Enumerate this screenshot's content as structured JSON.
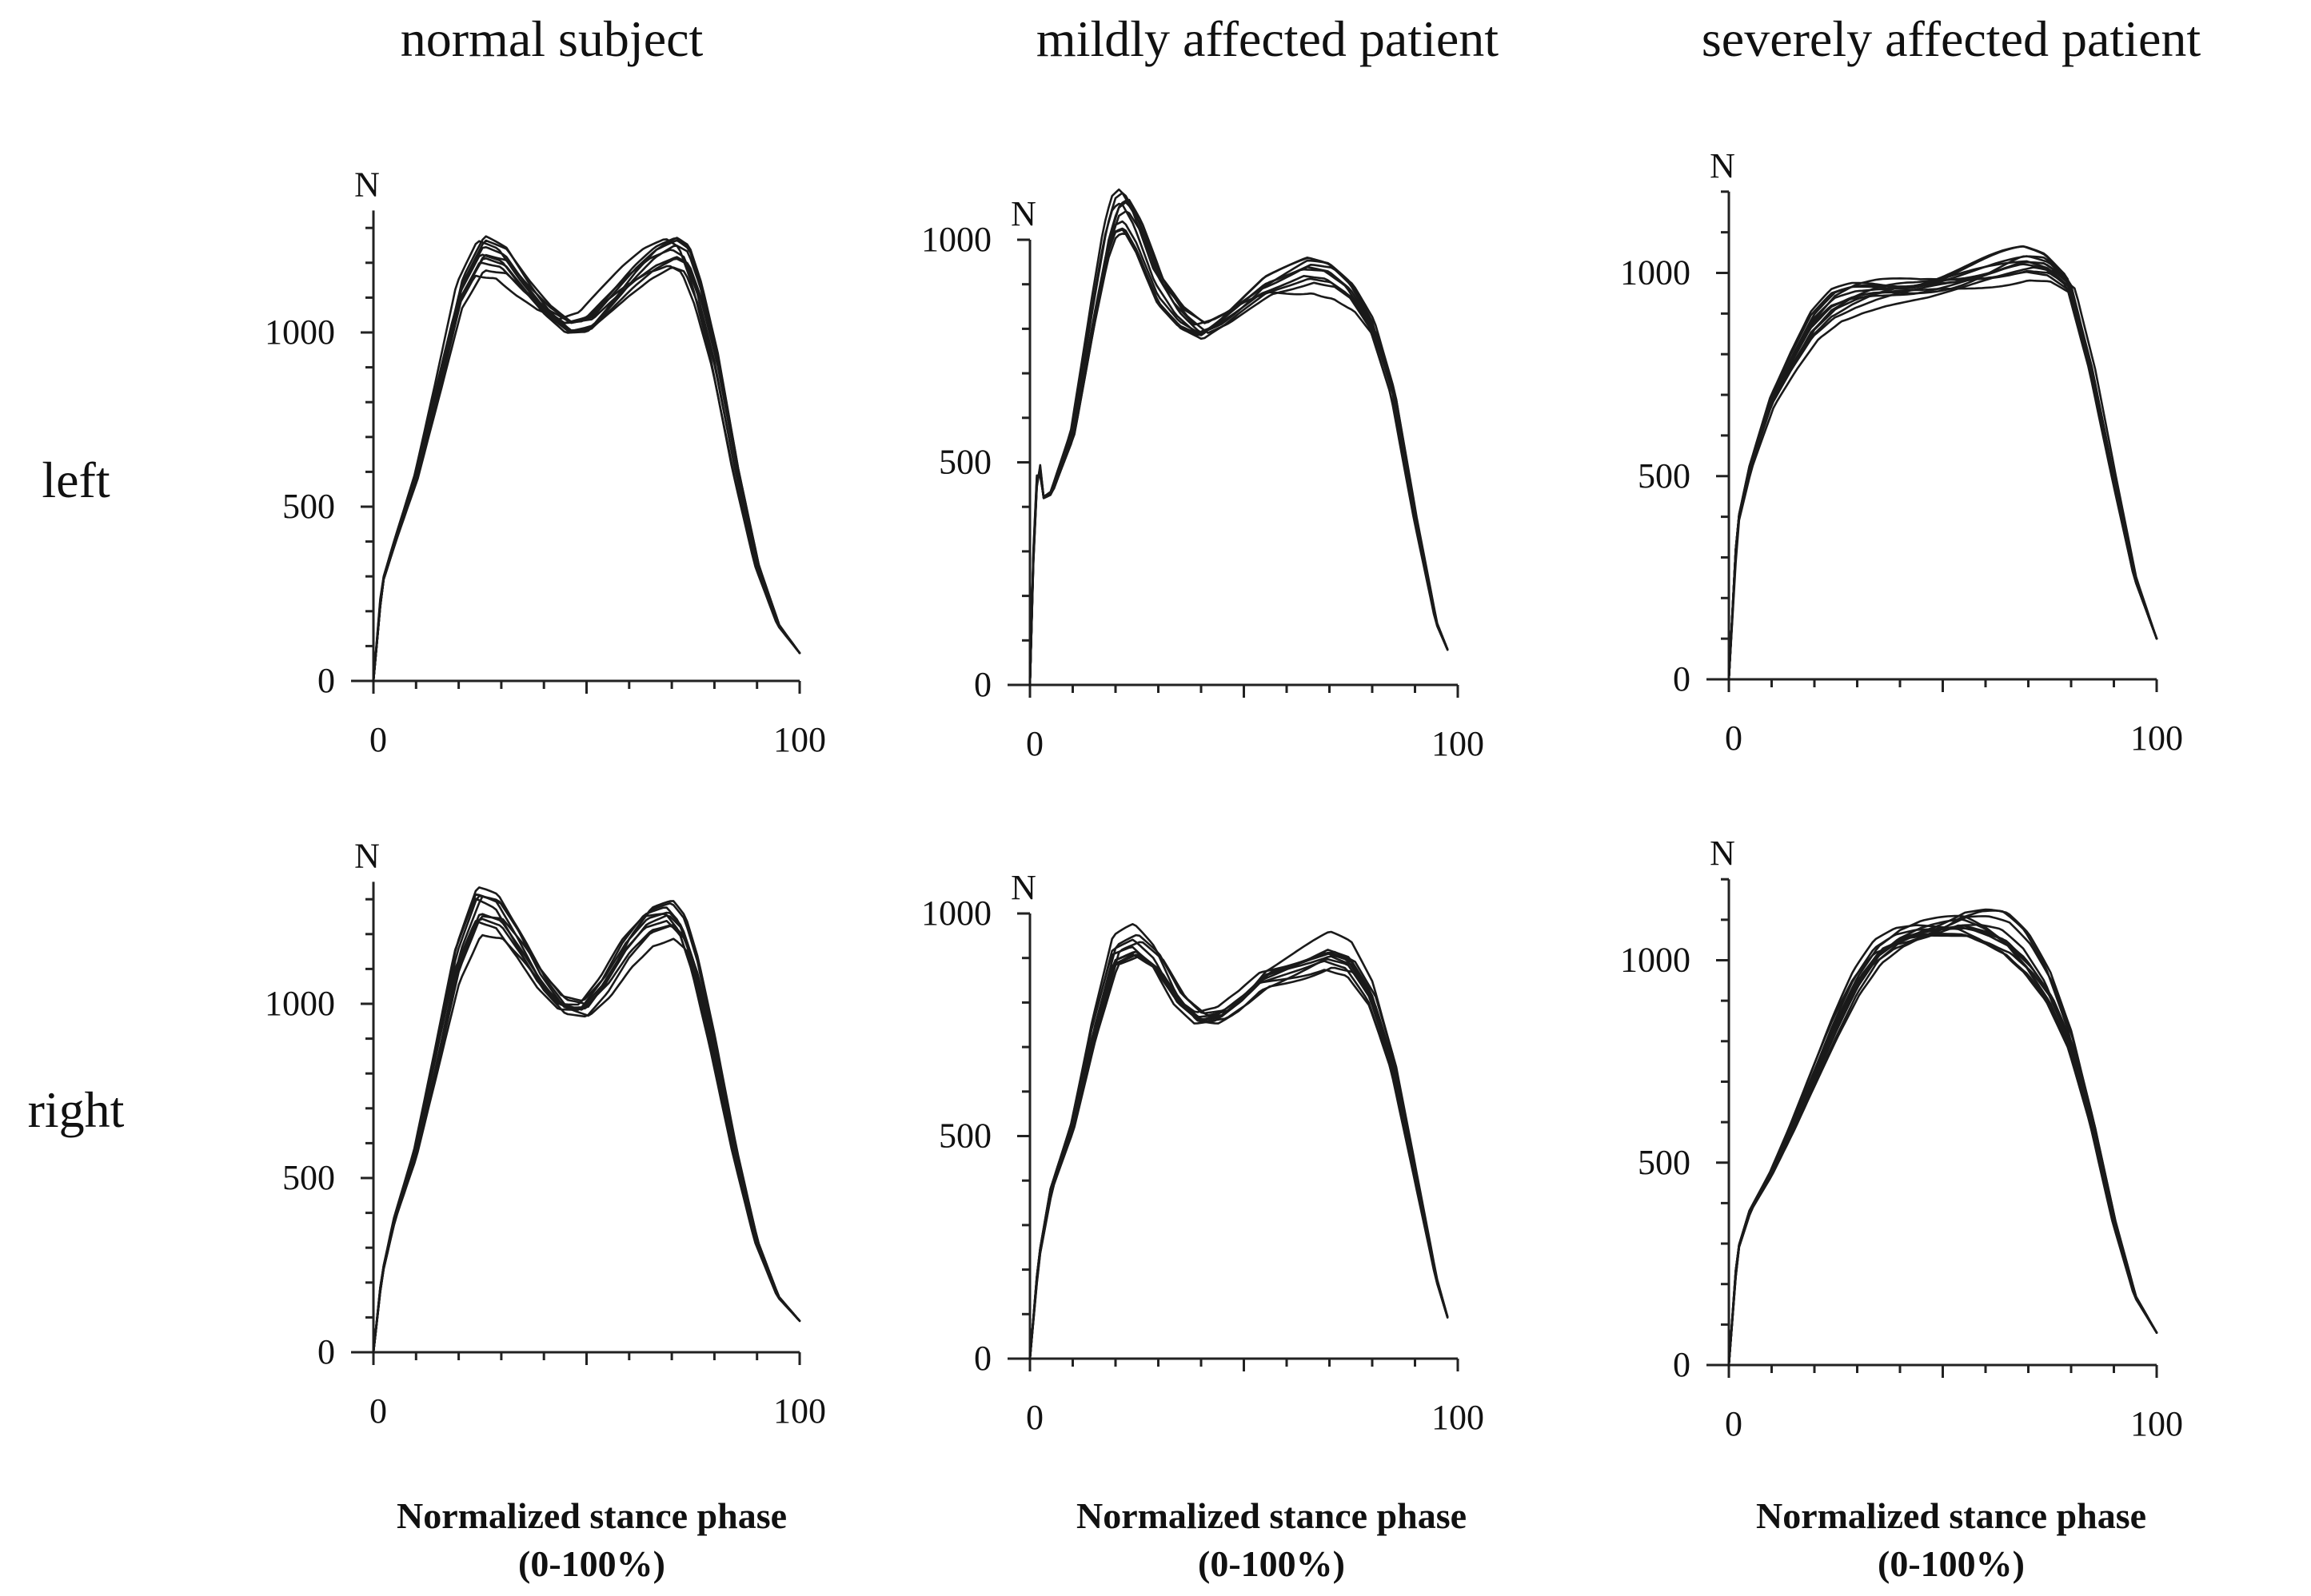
{
  "figure": {
    "columns": [
      "normal subject",
      "mildly affected patient",
      "severely affected patient"
    ],
    "rows": [
      "left",
      "right"
    ],
    "x_axis_title_line1": "Normalized stance phase",
    "x_axis_title_line2": "(0-100%)"
  },
  "chart_data": [
    {
      "type": "line",
      "id": "normal-left",
      "subject": "normal subject",
      "side": "left",
      "ylabel": "N",
      "xlim": [
        0,
        100
      ],
      "ylim": [
        0,
        1350
      ],
      "yticks": [
        0,
        500,
        1000
      ],
      "xtick_labels": [
        "0",
        "100"
      ],
      "trial_count": 10,
      "template_x": [
        0,
        2,
        5,
        10,
        15,
        20,
        25,
        30,
        35,
        40,
        45,
        50,
        55,
        60,
        65,
        70,
        73,
        76,
        80,
        85,
        90,
        95,
        100
      ],
      "template_y": [
        0,
        280,
        400,
        590,
        850,
        1120,
        1240,
        1220,
        1140,
        1070,
        1020,
        1030,
        1090,
        1150,
        1200,
        1230,
        1210,
        1110,
        920,
        600,
        330,
        160,
        80
      ],
      "peak1_range": [
        1160,
        1290
      ],
      "valley_range": [
        920,
        1060
      ],
      "peak2_range": [
        1150,
        1250
      ]
    },
    {
      "type": "line",
      "id": "mild-left",
      "subject": "mildly affected patient",
      "side": "left",
      "ylabel": "N",
      "xlim": [
        0,
        100
      ],
      "ylim": [
        0,
        1000
      ],
      "yticks": [
        0,
        500,
        1000
      ],
      "xtick_labels": [
        "0",
        "100"
      ],
      "trial_count": 10,
      "template_x": [
        0,
        1,
        2,
        3,
        5,
        10,
        15,
        18,
        20,
        22,
        25,
        30,
        35,
        40,
        45,
        50,
        55,
        60,
        65,
        70,
        75,
        80,
        85,
        90,
        95,
        98
      ],
      "template_y": [
        0,
        360,
        520,
        420,
        430,
        560,
        830,
        980,
        1040,
        1050,
        1000,
        880,
        820,
        790,
        820,
        860,
        900,
        920,
        940,
        930,
        890,
        810,
        650,
        380,
        140,
        70
      ],
      "peak1_range": [
        940,
        1070
      ],
      "valley_range": [
        720,
        870
      ],
      "peak2_range": [
        900,
        990
      ]
    },
    {
      "type": "line",
      "id": "severe-left",
      "subject": "severely affected patient",
      "side": "left",
      "ylabel": "N",
      "xlim": [
        0,
        100
      ],
      "ylim": [
        0,
        1200
      ],
      "yticks": [
        0,
        500,
        1000
      ],
      "xtick_labels": [
        "0",
        "100"
      ],
      "trial_count": 12,
      "template_x": [
        0,
        2,
        5,
        10,
        15,
        20,
        25,
        30,
        35,
        40,
        45,
        50,
        55,
        60,
        65,
        70,
        75,
        80,
        85,
        90,
        95,
        100
      ],
      "template_y": [
        0,
        380,
        520,
        680,
        780,
        870,
        920,
        940,
        950,
        955,
        960,
        970,
        980,
        990,
        1000,
        1010,
        1000,
        960,
        760,
        500,
        250,
        100
      ],
      "peak1_range": [
        840,
        1060
      ],
      "valley_range": [
        720,
        980
      ],
      "peak2_range": [
        960,
        1050
      ]
    },
    {
      "type": "line",
      "id": "normal-right",
      "subject": "normal subject",
      "side": "right",
      "ylabel": "N",
      "xlim": [
        0,
        100
      ],
      "ylim": [
        0,
        1350
      ],
      "yticks": [
        0,
        500,
        1000
      ],
      "xtick_labels": [
        "0",
        "100"
      ],
      "trial_count": 10,
      "template_x": [
        0,
        2,
        5,
        10,
        15,
        20,
        25,
        30,
        35,
        40,
        45,
        50,
        55,
        60,
        65,
        70,
        73,
        76,
        80,
        85,
        90,
        95,
        100
      ],
      "template_y": [
        0,
        220,
        380,
        570,
        840,
        1120,
        1270,
        1250,
        1160,
        1060,
        990,
        980,
        1050,
        1150,
        1220,
        1240,
        1200,
        1090,
        880,
        580,
        320,
        160,
        90
      ],
      "peak1_range": [
        1220,
        1320
      ],
      "valley_range": [
        890,
        1060
      ],
      "peak2_range": [
        1160,
        1290
      ]
    },
    {
      "type": "line",
      "id": "mild-right",
      "subject": "mildly affected patient",
      "side": "right",
      "ylabel": "N",
      "xlim": [
        0,
        100
      ],
      "ylim": [
        0,
        1000
      ],
      "yticks": [
        0,
        500,
        1000
      ],
      "xtick_labels": [
        "0",
        "100"
      ],
      "trial_count": 10,
      "template_x": [
        0,
        2,
        5,
        10,
        15,
        20,
        25,
        30,
        35,
        40,
        45,
        50,
        55,
        60,
        65,
        70,
        75,
        80,
        85,
        90,
        95,
        98
      ],
      "template_y": [
        0,
        220,
        380,
        520,
        730,
        900,
        920,
        880,
        800,
        760,
        770,
        810,
        860,
        880,
        900,
        920,
        900,
        820,
        660,
        420,
        180,
        80
      ],
      "peak1_range": [
        900,
        970
      ],
      "valley_range": [
        700,
        790
      ],
      "peak2_range": [
        900,
        950
      ]
    },
    {
      "type": "line",
      "id": "severe-right",
      "subject": "severely affected patient",
      "side": "right",
      "ylabel": "N",
      "xlim": [
        0,
        100
      ],
      "ylim": [
        0,
        1200
      ],
      "yticks": [
        0,
        500,
        1000
      ],
      "xtick_labels": [
        "0",
        "100"
      ],
      "trial_count": 12,
      "template_x": [
        0,
        2,
        5,
        10,
        15,
        20,
        25,
        30,
        35,
        40,
        45,
        50,
        55,
        60,
        65,
        70,
        75,
        80,
        85,
        90,
        95,
        100
      ],
      "template_y": [
        0,
        280,
        380,
        470,
        580,
        700,
        820,
        930,
        1010,
        1050,
        1070,
        1080,
        1090,
        1080,
        1060,
        1010,
        930,
        800,
        600,
        360,
        170,
        80
      ],
      "peak1_range": [
        980,
        1180
      ],
      "valley_range": [
        600,
        1000
      ],
      "peak2_range": [
        900,
        1140
      ]
    }
  ]
}
